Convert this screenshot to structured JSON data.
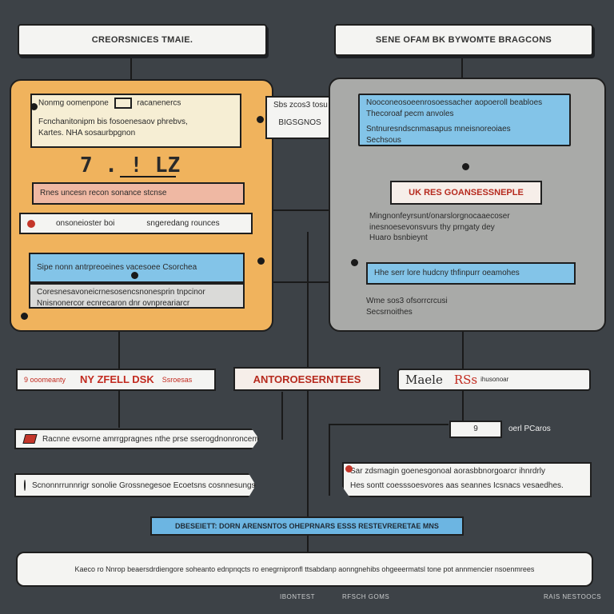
{
  "top_left_title": "CREORSNICES TMAIE.",
  "top_right_title": "SENE OFAM BK BYWOMTE BRAGCONS",
  "left_panel": {
    "card1_line1": "Nonmg oomenpone",
    "card1_line1b": "racanenercs",
    "card1_line2": "Fcnchanitonipm bis fosoenesaov phrebvs,",
    "card1_line3": "Kartes. NHA sosaurbpgnon",
    "handwritten": "7 . ! LZ",
    "salmon_card": "Rnes uncesn recon sonance stcnse",
    "white_row_a": "onsoneioster boi",
    "white_row_b": "sngeredang rounces",
    "blue_card": "Sipe nonn antrpreoeines vacesoee Csorchea",
    "gray_line1": "Coresnesavoneicrnesosencsnonesprin tnpcinor",
    "gray_line2": "Nnisnonercor ecnrecaron dnr ovnpreariarcr"
  },
  "middle_box": {
    "line1": "Sbs zcos3 tosu",
    "line2": "BIGSGNOS"
  },
  "right_panel": {
    "blue_top_line1": "Nooconeosoeenrosoessacher aopoeroll beabloes",
    "blue_top_line2": "Thecoroaf pecm anvoles",
    "blue_top_line3": "Sntnuresndscnmasapus mneisnoreoiaes",
    "blue_top_line4": "Sechsous",
    "tag": "UK RES GOANSESSNEPLE",
    "text_line1": "Mingnonfeyrsunt/onarslorgnocaaecoser",
    "text_line2": "inesnoesevonsvurs thy prngaty dey",
    "text_line3": "Huaro bsnbieynt",
    "blue_bar": "Hhe serr lore hudcny thfinpurr oeamohes",
    "note_line1": "Wme sos3 ofsorrcrcusi",
    "note_line2": "Secsrnoithes"
  },
  "middle_row": {
    "left_tag_small": "9 ooomeanty",
    "left_tag_red": "NY ZFELL DSK",
    "left_tag_tail": "Ssroesas",
    "center_tag": "ANTOROESERNTEES",
    "right_tag_main": "Maele",
    "right_tag_red": "RSs",
    "right_tag_tail": "ihusonoar"
  },
  "lower_left_rows": [
    "Racnne evsorne amrrgpragnes nthe prse sserogdnonroncerr",
    "Scnonnrrunnrigr sonolie Grossnegesoe Ecoetsns cosnnesungsens"
  ],
  "lower_right": {
    "small_box_a": "9",
    "small_box_b": "oerl PCaros",
    "card_line1": "Sar zdsmagin goenesgonoal aorasbbnorgoarcr ihnrdrly",
    "card_line2": "Hes sontt coesssoesvores aas seannes Icsnacs vesaedhes."
  },
  "blue_banner": "DBESEIETT: DORN ARENSNTOS OHEPRNARS ESSS RESTEVRERETAE MNS",
  "bottom_bar": "Kaeco ro Nnrop beaersdrdiengore soheanto ednpnqcts ro enegrnipronfl ttsabdanp aonngnehibs ohgeeermatsl tone pot annmencier nsoenmrees",
  "footer": {
    "a": "IBONTEST",
    "b": "RFSCH GOMS",
    "c": "RAIS NESTOOCS"
  }
}
